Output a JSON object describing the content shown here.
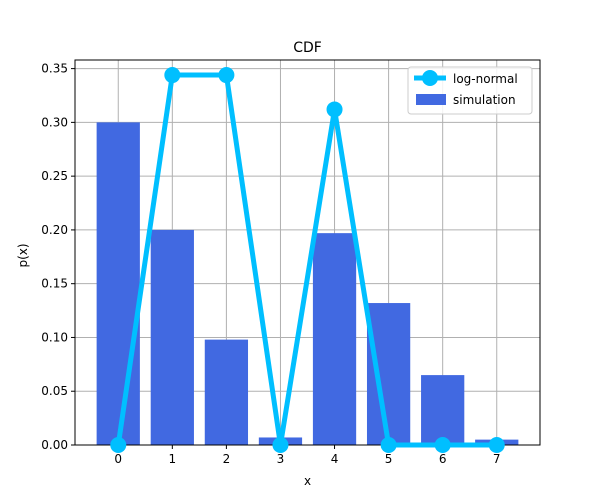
{
  "chart_data": {
    "type": "bar",
    "title": "CDF",
    "xlabel": "x",
    "ylabel": "p(x)",
    "x": [
      0,
      1,
      2,
      3,
      4,
      5,
      6,
      7
    ],
    "xlim": [
      -0.8,
      7.8
    ],
    "ylim": [
      0,
      0.358
    ],
    "yticks": [
      0.0,
      0.05,
      0.1,
      0.15,
      0.2,
      0.25,
      0.3,
      0.35
    ],
    "ytick_labels": [
      "0.00",
      "0.05",
      "0.10",
      "0.15",
      "0.20",
      "0.25",
      "0.30",
      "0.35"
    ],
    "grid": true,
    "legend_position": "top-right",
    "series": [
      {
        "name": "log-normal",
        "type": "line",
        "marker": "circle",
        "color": "#00bfff",
        "values": [
          0.0,
          0.344,
          0.344,
          0.0,
          0.312,
          0.0,
          0.0,
          0.0
        ]
      },
      {
        "name": "simulation",
        "type": "bar",
        "color": "#4169e1",
        "values": [
          0.3,
          0.2,
          0.098,
          0.007,
          0.197,
          0.132,
          0.065,
          0.005
        ]
      }
    ]
  }
}
